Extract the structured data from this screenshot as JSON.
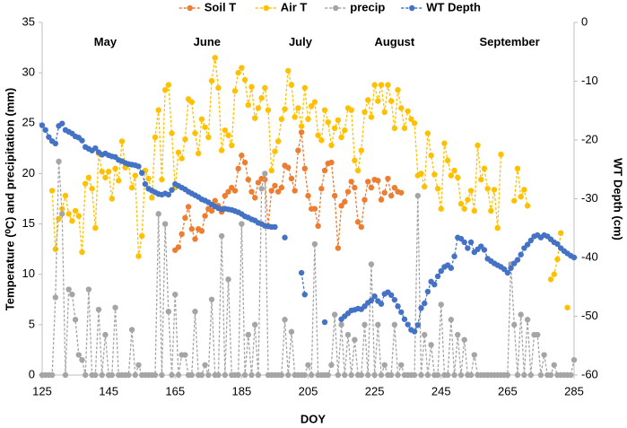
{
  "chart_data": {
    "type": "line",
    "x_label": "DOY",
    "y_label": "Temperature (⁰C) and precipitation (mm)",
    "y2_label": "WT Depth (cm)",
    "annotations": [
      {
        "text": "May",
        "x": 144,
        "y": 33
      },
      {
        "text": "June",
        "x": 174.6,
        "y": 33
      },
      {
        "text": "July",
        "x": 202.7,
        "y": 33
      },
      {
        "text": "August",
        "x": 231,
        "y": 33
      },
      {
        "text": "September",
        "x": 265.6,
        "y": 33
      }
    ],
    "legend": "top",
    "xlim": [
      125,
      285
    ],
    "xticks": [
      125,
      145,
      165,
      185,
      205,
      225,
      245,
      265,
      285
    ],
    "ylim": [
      0,
      35
    ],
    "yticks": [
      0,
      5,
      10,
      15,
      20,
      25,
      30,
      35
    ],
    "y2lim": [
      -60,
      0
    ],
    "y2ticks": [
      -60,
      -50,
      -40,
      -30,
      -20,
      -10,
      0
    ],
    "x": [
      125,
      126,
      127,
      128,
      129,
      130,
      131,
      132,
      133,
      134,
      135,
      136,
      137,
      138,
      139,
      140,
      141,
      142,
      143,
      144,
      145,
      146,
      147,
      148,
      149,
      150,
      151,
      152,
      153,
      154,
      155,
      156,
      157,
      158,
      159,
      160,
      161,
      162,
      163,
      164,
      165,
      166,
      167,
      168,
      169,
      170,
      171,
      172,
      173,
      174,
      175,
      176,
      177,
      178,
      179,
      180,
      181,
      182,
      183,
      184,
      185,
      186,
      187,
      188,
      189,
      190,
      191,
      192,
      193,
      194,
      195,
      196,
      197,
      198,
      199,
      200,
      201,
      202,
      203,
      204,
      205,
      206,
      207,
      208,
      209,
      210,
      211,
      212,
      213,
      214,
      215,
      216,
      217,
      218,
      219,
      220,
      221,
      222,
      223,
      224,
      225,
      226,
      227,
      228,
      229,
      230,
      231,
      232,
      233,
      234,
      235,
      236,
      237,
      238,
      239,
      240,
      241,
      242,
      243,
      244,
      245,
      246,
      247,
      248,
      249,
      250,
      251,
      252,
      253,
      254,
      255,
      256,
      257,
      258,
      259,
      260,
      261,
      262,
      263,
      264,
      265,
      266,
      267,
      268,
      269,
      270,
      271,
      272,
      273,
      274,
      275,
      276,
      277,
      278,
      279,
      280,
      281,
      282,
      283,
      284,
      285
    ],
    "series": [
      {
        "name": "Soil T",
        "color": "#ed7d31",
        "values": [
          null,
          null,
          null,
          null,
          null,
          null,
          null,
          null,
          null,
          null,
          null,
          null,
          null,
          null,
          null,
          null,
          null,
          null,
          null,
          null,
          null,
          null,
          null,
          null,
          null,
          null,
          null,
          null,
          null,
          null,
          null,
          null,
          null,
          null,
          null,
          null,
          null,
          null,
          null,
          null,
          12.4,
          12.7,
          14,
          15.6,
          16.7,
          14.5,
          13.5,
          14.5,
          14.3,
          15.8,
          16.5,
          16.3,
          17.3,
          16.8,
          16.2,
          17.8,
          18.2,
          18.6,
          18.3,
          20.5,
          21.8,
          21.1,
          19.4,
          18.2,
          17.6,
          19.1,
          19.5,
          19.4,
          14.8,
          18.3,
          18.8,
          18.2,
          18.6,
          20.8,
          20.6,
          19.5,
          18.3,
          22.3,
          24.1,
          20.5,
          17.8,
          16.5,
          16.5,
          14.8,
          18.5,
          20.3,
          21,
          21.1,
          17.8,
          12.6,
          16.8,
          17.2,
          18.2,
          19.2,
          18.6,
          15.2,
          14.7,
          17.4,
          19.2,
          18.6,
          19.4,
          19.3,
          17.4,
          18.1,
          19.5,
          17.8,
          18.6,
          18.2,
          18.1,
          null,
          null,
          null,
          null,
          null,
          null,
          null,
          null,
          null,
          null,
          null,
          null,
          null,
          null,
          null,
          null,
          null,
          null,
          null,
          null,
          null,
          null,
          null,
          null,
          null,
          null,
          null,
          null,
          null,
          null,
          null,
          null,
          null,
          null,
          null,
          null,
          null,
          null,
          null,
          null,
          null,
          null,
          null,
          null,
          null,
          null,
          null,
          null,
          null,
          null,
          null,
          null
        ]
      },
      {
        "name": "Air T",
        "color": "#ffc000",
        "values": [
          null,
          null,
          null,
          18.3,
          12.5,
          15.5,
          16.5,
          17.8,
          16,
          15.3,
          16.3,
          15.8,
          12.2,
          19,
          19.6,
          18.5,
          14.6,
          22,
          20.2,
          19.6,
          20.2,
          17.5,
          20.5,
          19.3,
          23.2,
          20.6,
          20.9,
          18.6,
          19.8,
          11.8,
          13.8,
          20.3,
          19.5,
          17.6,
          23.6,
          26.3,
          19.4,
          28.3,
          28.8,
          24,
          18.6,
          22.1,
          21.5,
          23.4,
          27.4,
          27.1,
          24,
          22,
          25.4,
          24.6,
          23.6,
          29.2,
          31.5,
          28.5,
          22.3,
          24.3,
          23.8,
          22.8,
          28.2,
          30,
          30.5,
          29.3,
          26.8,
          28.6,
          25.5,
          26.5,
          27.5,
          28.5,
          26.3,
          20.3,
          22.2,
          23.2,
          25.4,
          26.4,
          30.2,
          28.8,
          25.6,
          26.5,
          24.7,
          28.5,
          25.4,
          26.7,
          27.1,
          23.8,
          23.3,
          26.3,
          25.1,
          22.8,
          24.5,
          25.3,
          23.6,
          24.3,
          26.5,
          26.3,
          21.3,
          20.3,
          22.3,
          26.1,
          27.3,
          25.6,
          28.8,
          27.2,
          28.8,
          26.1,
          28.8,
          27.2,
          24.5,
          28.3,
          26.5,
          24.5,
          26.2,
          25.4,
          25,
          19.8,
          20,
          18.7,
          24,
          21.8,
          19.9,
          18.5,
          16.5,
          23,
          21.3,
          19.8,
          20.3,
          19.6,
          17,
          16.5,
          17.4,
          18.3,
          16.3,
          22.8,
          19.4,
          20.5,
          18.5,
          16.3,
          18.4,
          14.6,
          21.9,
          null,
          null,
          null,
          17.3,
          20.5,
          17.7,
          18.4,
          16.8,
          null,
          null,
          null,
          null,
          null,
          null,
          9.5,
          10,
          11.5,
          14.1,
          null,
          6.7,
          null,
          null
        ]
      },
      {
        "name": "precip",
        "color": "#a5a5a5",
        "values": [
          0,
          0,
          0,
          0,
          7.7,
          21.2,
          16,
          0,
          8.5,
          8,
          5.5,
          2,
          1.5,
          0,
          8.5,
          0,
          0,
          6.5,
          0,
          4,
          0,
          0,
          6.7,
          0,
          0,
          0,
          0,
          4.5,
          0,
          1,
          0,
          0,
          0,
          0,
          0,
          16,
          0,
          15,
          6.3,
          0,
          8,
          0,
          2,
          2,
          0,
          0,
          6.3,
          0,
          0,
          1,
          0,
          7.5,
          0,
          0,
          13.8,
          0,
          9.5,
          0,
          0,
          0,
          15,
          0,
          4,
          0,
          5,
          0,
          18.5,
          20,
          0,
          0,
          0,
          0,
          0,
          5.5,
          0,
          4.3,
          0,
          0,
          0,
          0,
          1,
          0,
          13,
          0,
          0,
          0,
          0,
          1,
          6,
          0,
          5,
          0,
          4,
          0,
          3.5,
          0,
          0,
          5,
          0,
          11,
          0,
          5,
          0,
          1,
          0,
          0,
          5,
          0,
          1,
          0,
          0,
          0,
          0,
          17.8,
          0,
          4,
          0,
          3,
          0,
          0,
          7,
          0,
          0,
          5.5,
          0,
          4,
          0,
          3.5,
          0,
          0,
          2,
          0,
          0,
          0,
          0,
          0,
          0,
          0,
          0,
          0,
          0,
          11,
          5,
          0,
          6,
          0,
          5.5,
          0,
          4,
          4,
          0,
          2,
          0,
          0,
          1,
          0,
          0,
          0,
          0,
          0,
          1.5
        ]
      },
      {
        "name": "WT Depth",
        "color": "#4472c4",
        "axis": "y2",
        "values": [
          -17.5,
          -18.3,
          -19.5,
          -20.2,
          -20.6,
          -17.6,
          -17.2,
          -18.3,
          -18.6,
          -18.9,
          -19.4,
          -19.6,
          -20.1,
          -21.2,
          -21.5,
          -21.8,
          -21.4,
          -22.1,
          -22.5,
          -22.3,
          -22.6,
          -22.8,
          -22.9,
          -23.4,
          -23.6,
          -23.9,
          -24.1,
          -24.2,
          -24.3,
          -24.5,
          -25.6,
          -27.5,
          -28.3,
          -28.6,
          -28.9,
          -29.2,
          -29.3,
          -29.1,
          -29.3,
          -28.5,
          -27.5,
          -27.8,
          -28.1,
          -28.4,
          -28.8,
          -29.1,
          -29.4,
          -29.7,
          -30.1,
          -30.3,
          -30.6,
          -31,
          -31.3,
          -31.6,
          -31.8,
          -31.7,
          -31.8,
          -31.9,
          -32.1,
          -32.3,
          -32.6,
          -33,
          -33.2,
          -33.5,
          -33.7,
          -34.1,
          -34.3,
          -34.6,
          -34.7,
          -34.8,
          -34.8,
          null,
          null,
          -36.6,
          null,
          null,
          null,
          null,
          -42.6,
          -46.3,
          null,
          null,
          null,
          null,
          null,
          -51,
          null,
          null,
          null,
          null,
          -50.5,
          -50,
          -49.5,
          -49,
          -48.9,
          -48.7,
          -48.8,
          -48.3,
          -47.7,
          -47.3,
          -46.6,
          -47.4,
          -47.9,
          -46.2,
          -45.9,
          -46.4,
          -47.2,
          -48.3,
          -49.3,
          -50.5,
          -51.4,
          -52.3,
          -52.6,
          -51.5,
          -48.6,
          -47.8,
          -45.8,
          -44.1,
          -44.6,
          -43.2,
          -42.3,
          -41.6,
          -41.3,
          -41.8,
          -39.8,
          -36.6,
          -36.8,
          -37.4,
          -38.4,
          -37.4,
          -39.1,
          -38.6,
          -38.1,
          -38.7,
          -40.2,
          -40.6,
          -41,
          -41.3,
          -41.6,
          -42,
          -42.6,
          -41.8,
          -41,
          -40.4,
          -39.5,
          -38.4,
          -37.8,
          -37.1,
          -36.4,
          -36.2,
          -36.6,
          -36.2,
          -36.4,
          -36.9,
          -37.4,
          -37.7,
          -38.4,
          -38.9,
          -39.3,
          -39.7,
          -40
        ]
      }
    ]
  }
}
